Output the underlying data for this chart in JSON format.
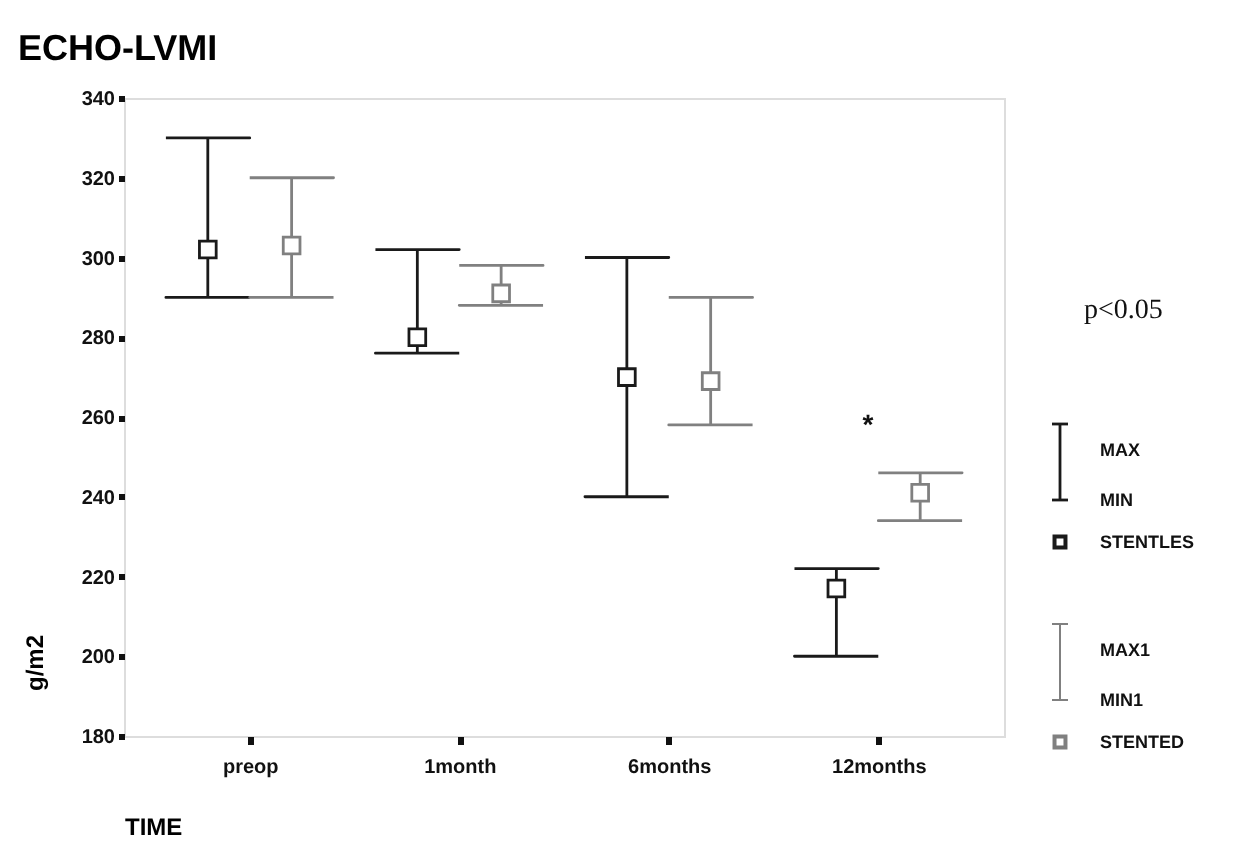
{
  "chart_data": {
    "type": "scatter",
    "title": "ECHO-LVMI",
    "xlabel": "TIME",
    "ylabel": "g/m2",
    "categories": [
      "preop",
      "1month",
      "6months",
      "12months"
    ],
    "series": [
      {
        "name": "STENTLES",
        "color": "#1a1a1a",
        "values": [
          302,
          280,
          270,
          217
        ],
        "errors": [
          [
            290,
            330
          ],
          [
            276,
            302
          ],
          [
            240,
            300
          ],
          [
            200,
            222
          ]
        ]
      },
      {
        "name": "STENTED",
        "color": "#808080",
        "values": [
          303,
          291,
          269,
          241
        ],
        "errors": [
          [
            290,
            320
          ],
          [
            288,
            298
          ],
          [
            258,
            290
          ],
          [
            234,
            246
          ]
        ]
      }
    ],
    "annotations": [
      "p<0.05",
      "*",
      "MAX",
      "MIN",
      "MAX1",
      "MIN1"
    ],
    "ylim": [
      180,
      340
    ],
    "yticks": [
      180,
      200,
      220,
      240,
      260,
      280,
      300,
      320,
      340
    ],
    "marker": "square",
    "grid": false,
    "legend": "right"
  }
}
